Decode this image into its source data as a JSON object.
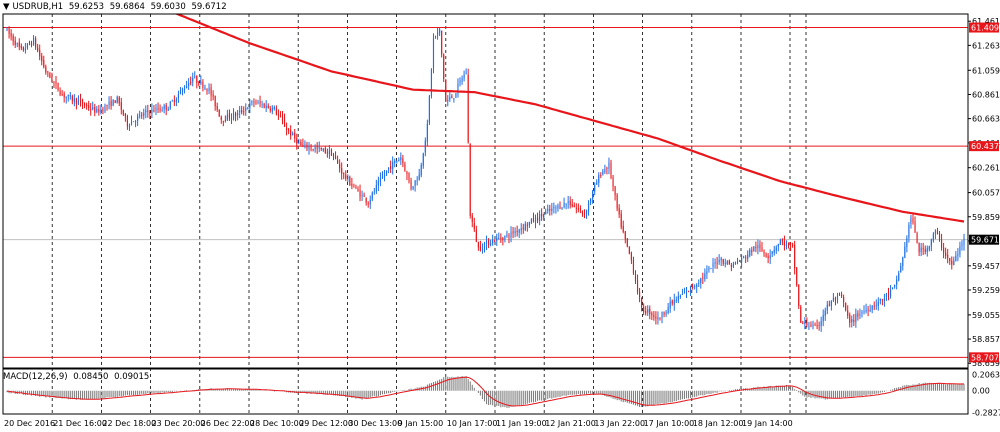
{
  "header": {
    "arrow": "▼",
    "symbol": "USDRUB,H1",
    "open": "59.6253",
    "high": "59.6864",
    "low": "59.6030",
    "close": "59.6712"
  },
  "macd_header": {
    "name": "MACD(12,26,9)",
    "main": "0.08450",
    "signal": "0.09015"
  },
  "colors": {
    "up": "#1e6ee8",
    "down": "#e8161b",
    "ma": "#e8161b",
    "hline": "#e8161b",
    "grid": "#000000",
    "macd_hist": "#808080",
    "macd_signal": "#e8161b",
    "current_line": "#c0c0c0"
  },
  "price_axis": {
    "labels": [
      "61.4610",
      "61.2630",
      "61.0590",
      "60.8610",
      "60.6630",
      "60.4640",
      "60.2610",
      "60.0570",
      "59.8590",
      "59.6610",
      "59.4570",
      "59.2590",
      "59.0550",
      "58.8570",
      "58.6590"
    ],
    "ylim": [
      58.62,
      61.52
    ]
  },
  "horizontal_levels": [
    {
      "price": 61.4092,
      "label": "61.4092"
    },
    {
      "price": 60.4375,
      "label": "60.4375"
    },
    {
      "price": 58.7074,
      "label": "58.7074"
    }
  ],
  "current_price": {
    "price": 59.6712,
    "label": "59.6712"
  },
  "macd_axis": {
    "labels": [
      "0.20637",
      "0.00",
      "-0.28273"
    ],
    "ylim": [
      -0.3,
      0.28
    ]
  },
  "time_axis": {
    "labels": [
      "20 Dec 2016",
      "21 Dec 16:00",
      "22 Dec 18:00",
      "23 Dec 20:00",
      "26 Dec 22:00",
      "28 Dec 10:00",
      "29 Dec 12:00",
      "30 Dec 13:00",
      "9 Jan 15:00",
      "10 Jan 17:00",
      "11 Jan 19:00",
      "12 Jan 21:00",
      "13 Jan 22:00",
      "17 Jan 10:00",
      "18 Jan 12:00",
      "19 Jan 14:00"
    ]
  },
  "chart_data": {
    "type": "candlestick",
    "symbol": "USDRUB",
    "timeframe": "H1",
    "anchors": [
      [
        0,
        61.4
      ],
      [
        8,
        61.22
      ],
      [
        14,
        61.3
      ],
      [
        20,
        61.05
      ],
      [
        28,
        60.86
      ],
      [
        36,
        60.8
      ],
      [
        45,
        60.72
      ],
      [
        55,
        60.82
      ],
      [
        60,
        60.62
      ],
      [
        70,
        60.72
      ],
      [
        80,
        60.76
      ],
      [
        92,
        61.0
      ],
      [
        100,
        60.9
      ],
      [
        106,
        60.66
      ],
      [
        114,
        60.7
      ],
      [
        122,
        60.8
      ],
      [
        132,
        60.74
      ],
      [
        138,
        60.58
      ],
      [
        145,
        60.44
      ],
      [
        152,
        60.42
      ],
      [
        160,
        60.38
      ],
      [
        166,
        60.2
      ],
      [
        172,
        60.08
      ],
      [
        178,
        59.98
      ],
      [
        182,
        60.1
      ],
      [
        188,
        60.26
      ],
      [
        194,
        60.35
      ],
      [
        199,
        60.1
      ],
      [
        203,
        60.2
      ],
      [
        207,
        60.6
      ],
      [
        210,
        61.32
      ],
      [
        213,
        61.38
      ],
      [
        216,
        60.8
      ],
      [
        220,
        60.85
      ],
      [
        224,
        61.0
      ],
      [
        226,
        61.04
      ],
      [
        228,
        59.88
      ],
      [
        232,
        59.6
      ],
      [
        238,
        59.66
      ],
      [
        246,
        59.7
      ],
      [
        256,
        59.8
      ],
      [
        266,
        59.9
      ],
      [
        276,
        59.98
      ],
      [
        284,
        59.88
      ],
      [
        288,
        60.06
      ],
      [
        292,
        60.22
      ],
      [
        296,
        60.28
      ],
      [
        300,
        59.92
      ],
      [
        304,
        59.66
      ],
      [
        307,
        59.5
      ],
      [
        312,
        59.1
      ],
      [
        316,
        59.08
      ],
      [
        320,
        59.02
      ],
      [
        326,
        59.14
      ],
      [
        332,
        59.22
      ],
      [
        338,
        59.3
      ],
      [
        344,
        59.4
      ],
      [
        350,
        59.52
      ],
      [
        356,
        59.46
      ],
      [
        362,
        59.52
      ],
      [
        368,
        59.62
      ],
      [
        374,
        59.54
      ],
      [
        380,
        59.66
      ],
      [
        386,
        59.6
      ],
      [
        390,
        58.98
      ],
      [
        394,
        58.98
      ],
      [
        398,
        58.94
      ],
      [
        402,
        59.1
      ],
      [
        406,
        59.18
      ],
      [
        410,
        59.2
      ],
      [
        414,
        58.98
      ],
      [
        418,
        59.06
      ],
      [
        424,
        59.12
      ],
      [
        430,
        59.18
      ],
      [
        436,
        59.28
      ],
      [
        440,
        59.52
      ],
      [
        442,
        59.7
      ],
      [
        444,
        59.86
      ],
      [
        448,
        59.58
      ],
      [
        452,
        59.6
      ],
      [
        456,
        59.74
      ],
      [
        460,
        59.58
      ],
      [
        464,
        59.46
      ],
      [
        470,
        59.67
      ]
    ],
    "ma": [
      [
        0,
        62.1
      ],
      [
        40,
        61.85
      ],
      [
        80,
        61.55
      ],
      [
        120,
        61.28
      ],
      [
        160,
        61.05
      ],
      [
        200,
        60.9
      ],
      [
        230,
        60.88
      ],
      [
        260,
        60.78
      ],
      [
        290,
        60.64
      ],
      [
        320,
        60.5
      ],
      [
        350,
        60.32
      ],
      [
        380,
        60.15
      ],
      [
        410,
        60.02
      ],
      [
        440,
        59.9
      ],
      [
        470,
        59.82
      ]
    ],
    "macd_anchors": [
      [
        0,
        -0.02
      ],
      [
        20,
        -0.08
      ],
      [
        40,
        -0.12
      ],
      [
        60,
        -0.06
      ],
      [
        80,
        -0.02
      ],
      [
        100,
        0.03
      ],
      [
        120,
        0.02
      ],
      [
        140,
        -0.02
      ],
      [
        160,
        -0.05
      ],
      [
        175,
        -0.11
      ],
      [
        190,
        -0.02
      ],
      [
        205,
        0.05
      ],
      [
        215,
        0.17
      ],
      [
        226,
        0.19
      ],
      [
        236,
        -0.18
      ],
      [
        246,
        -0.22
      ],
      [
        260,
        -0.14
      ],
      [
        275,
        -0.06
      ],
      [
        290,
        -0.03
      ],
      [
        300,
        -0.12
      ],
      [
        312,
        -0.21
      ],
      [
        325,
        -0.15
      ],
      [
        340,
        -0.07
      ],
      [
        355,
        0.01
      ],
      [
        370,
        0.05
      ],
      [
        385,
        0.07
      ],
      [
        392,
        -0.08
      ],
      [
        402,
        -0.11
      ],
      [
        414,
        -0.08
      ],
      [
        428,
        -0.04
      ],
      [
        440,
        0.06
      ],
      [
        450,
        0.1
      ],
      [
        460,
        0.09
      ],
      [
        470,
        0.085
      ]
    ]
  }
}
